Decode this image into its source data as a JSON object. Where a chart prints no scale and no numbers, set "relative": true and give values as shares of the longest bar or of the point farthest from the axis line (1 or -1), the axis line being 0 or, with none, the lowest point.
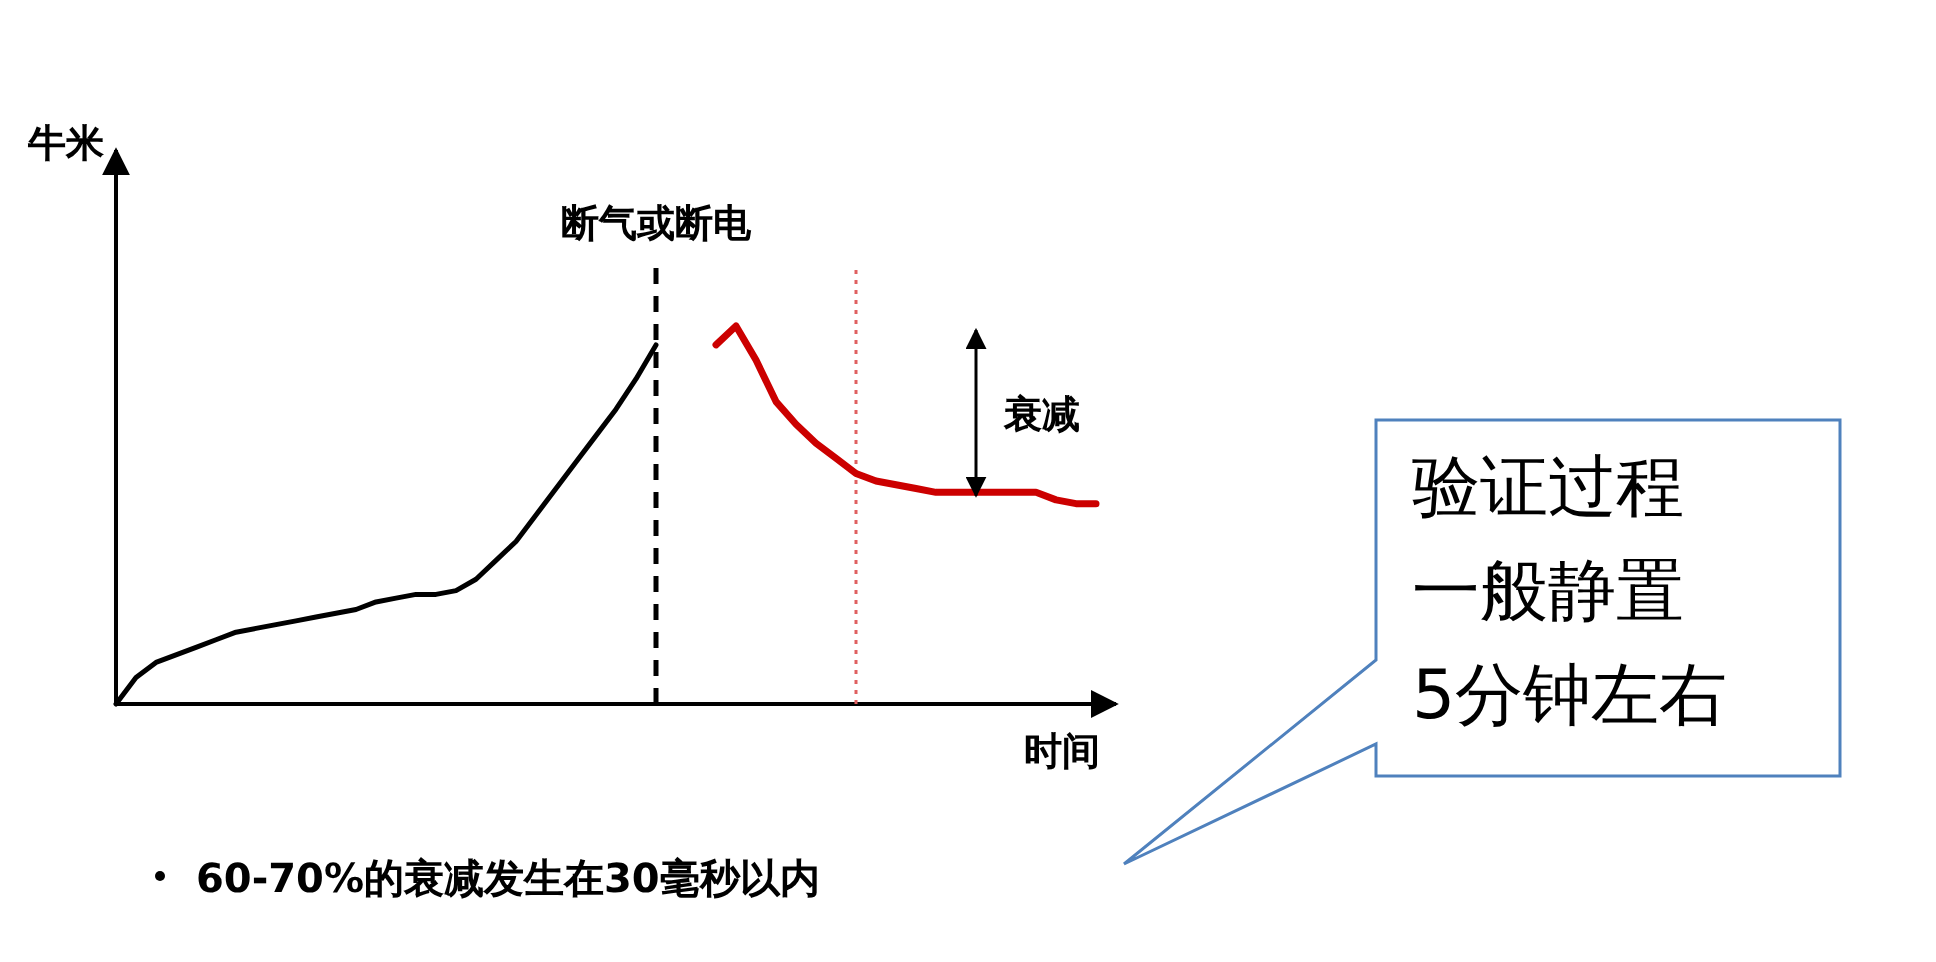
{
  "chart_data": {
    "type": "line",
    "relative": true,
    "ylabel": "牛米",
    "xlabel": "时间",
    "line_style": "solid",
    "categories": [
      null,
      null,
      null,
      null,
      null,
      null,
      null,
      null,
      null,
      null,
      null,
      null,
      null,
      null,
      null,
      null,
      null,
      null,
      null,
      null,
      null,
      null,
      null,
      null,
      null,
      null,
      null,
      null,
      null,
      null,
      null,
      null,
      null,
      null,
      null,
      null,
      null,
      null,
      null,
      null,
      null,
      null,
      null,
      null,
      null,
      null,
      null,
      null,
      null,
      null
    ],
    "series": [
      {
        "color": "#000000",
        "values": [
          0,
          0.07,
          0.11,
          0.13,
          0.15,
          0.17,
          0.19,
          0.2,
          0.21,
          0.22,
          0.23,
          0.24,
          0.25,
          0.27,
          0.28,
          0.29,
          0.29,
          0.3,
          0.33,
          0.38,
          0.43,
          0.5,
          0.57,
          0.64,
          0.71,
          0.78,
          0.86,
          0.95,
          null,
          null,
          null,
          null,
          null,
          null,
          null,
          null,
          null,
          null,
          null,
          null,
          null,
          null,
          null,
          null,
          null,
          null,
          null,
          null,
          null,
          null
        ]
      },
      {
        "color": "#cc0000",
        "values": [
          null,
          null,
          null,
          null,
          null,
          null,
          null,
          null,
          null,
          null,
          null,
          null,
          null,
          null,
          null,
          null,
          null,
          null,
          null,
          null,
          null,
          null,
          null,
          null,
          null,
          null,
          null,
          null,
          null,
          null,
          0.95,
          1,
          0.91,
          0.8,
          0.74,
          0.69,
          0.65,
          0.61,
          0.59,
          0.58,
          0.57,
          0.56,
          0.56,
          0.56,
          0.56,
          0.56,
          0.56,
          0.54,
          0.53,
          0.53
        ]
      }
    ],
    "ref_lines": [
      {
        "axis": "x",
        "label": "断气或断电",
        "color": "#000000",
        "line_style": "dashed"
      },
      {
        "axis": "x",
        "label": null,
        "color": "#e06060",
        "line_style": "dotted"
      }
    ],
    "annotations": [
      "衰减",
      "60-70%的衰减发生在30毫秒以内",
      "验证过程一般静置5分钟左右"
    ]
  }
}
